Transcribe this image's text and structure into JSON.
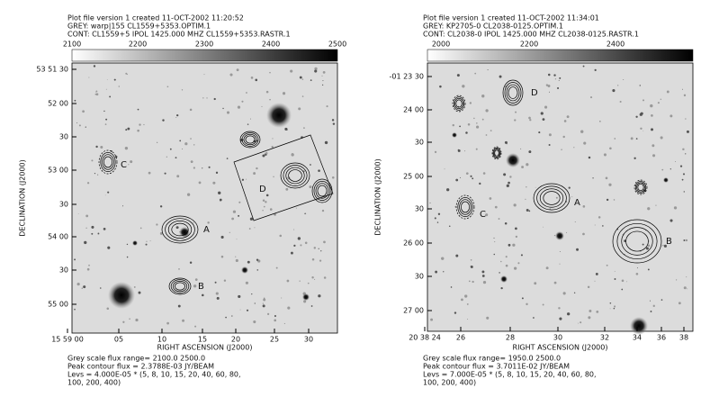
{
  "panels": [
    {
      "header": [
        "Plot file version 1  created 11-OCT-2002 11:20:52",
        "GREY: warp|155  CL1559+5353.OPTIM.1",
        "CONT: CL1559+5  IPOL  1425.000 MHZ  CL1559+5353.RASTR.1"
      ],
      "scale_ticks": [
        "2100",
        "2200",
        "2300",
        "2400",
        "2500"
      ],
      "y_ticks": [
        "53 51 30",
        "52 00",
        "30",
        "53 00",
        "30",
        "54 00",
        "30",
        "55 00"
      ],
      "x_ticks": [
        "15 59 00",
        "05",
        "10",
        "15",
        "20",
        "25",
        "30"
      ],
      "x_label": "RIGHT ASCENSION (J2000)",
      "y_label": "DECLINATION (J2000)",
      "source_labels": [
        "A",
        "B",
        "C",
        "D"
      ],
      "footer": [
        "Grey scale flux range= 2100.0 2500.0",
        "Peak contour flux = 2.3788E-03 JY/BEAM",
        "Levs = 4.000E-05 * (5, 8, 10, 15, 20, 40, 60, 80,",
        "100, 200, 400)"
      ]
    },
    {
      "header": [
        "Plot file version 1  created 11-OCT-2002 11:34:01",
        "GREY: KP2705-0  CL2038-0125.OPTIM.1",
        "CONT: CL2038-0  IPOL  1425.000 MHZ  CL2038-0125.RASTR.1"
      ],
      "scale_ticks": [
        "2000",
        "2200",
        "2400"
      ],
      "y_ticks": [
        "-01 23 30",
        "24 00",
        "30",
        "25 00",
        "30",
        "26 00",
        "30",
        "27 00"
      ],
      "x_ticks": [
        "20 38 24",
        "26",
        "28",
        "30",
        "32",
        "34",
        "36",
        "38"
      ],
      "x_label": "RIGHT ASCENSION (J2000)",
      "y_label": "DECLINATION (J2000)",
      "source_labels": [
        "A",
        "B",
        "C",
        "D"
      ],
      "footer": [
        "Grey scale flux range= 1950.0 2500.0",
        "Peak contour flux = 3.7011E-02 JY/BEAM",
        "Levs = 7.000E-05 * (5, 8, 10, 15, 20, 40, 60, 80,",
        "100, 200, 400)"
      ]
    }
  ]
}
